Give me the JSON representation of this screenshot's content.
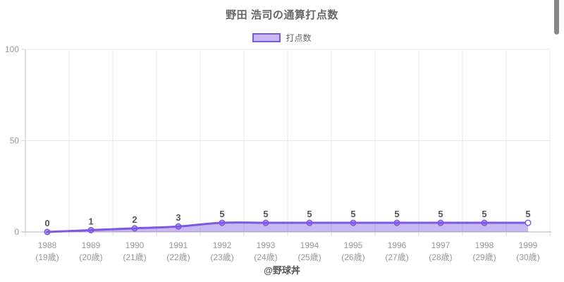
{
  "title": "野田 浩司の通算打点数",
  "legend": {
    "label": "打点数"
  },
  "footer": {
    "credit": "@野球丼"
  },
  "colors": {
    "line": "#7e57e2",
    "area_fill": "rgba(126,87,226,0.42)",
    "marker_fill": "rgba(126,87,226,0.55)",
    "last_marker_fill": "#ffffff",
    "grid": "#e9e9e9",
    "axis": "#b3b3b3",
    "axis_left": "#c0c0c0",
    "tick_mark": "#d9d9d9",
    "tick_text": "#999999",
    "data_label_text": "#555555",
    "title_text": "#666666"
  },
  "chart_data": {
    "type": "area",
    "title": "野田 浩司の通算打点数",
    "series_name": "打点数",
    "categories": [
      "1988",
      "1989",
      "1990",
      "1991",
      "1992",
      "1993",
      "1994",
      "1995",
      "1996",
      "1997",
      "1998",
      "1999"
    ],
    "category_sublabels": [
      "(19歳)",
      "(20歳)",
      "(21歳)",
      "(22歳)",
      "(23歳)",
      "(24歳)",
      "(25歳)",
      "(26歳)",
      "(27歳)",
      "(28歳)",
      "(29歳)",
      "(30歳)"
    ],
    "values": [
      0,
      1,
      2,
      3,
      5,
      5,
      5,
      5,
      5,
      5,
      5,
      5
    ],
    "ylim": [
      0,
      100
    ],
    "yticks": [
      0,
      50,
      100
    ],
    "grid": true,
    "legend_position": "top",
    "annotation": "@野球丼"
  }
}
